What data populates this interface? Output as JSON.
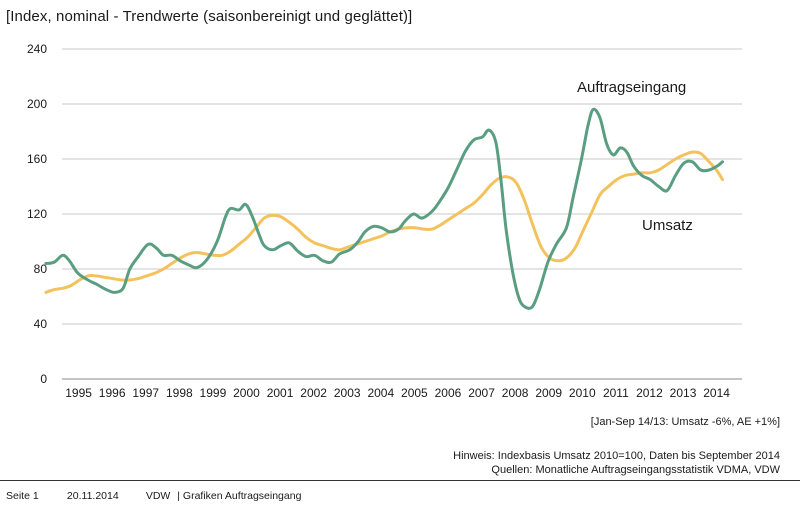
{
  "header": {
    "title": "[Index, nominal - Trendwerte (saisonbereinigt und geglättet)]"
  },
  "notes": {
    "change": "[Jan-Sep 14/13: Umsatz -6%, AE +1%]",
    "hinweis": "Hinweis: Indexbasis Umsatz 2010=100, Daten bis September 2014",
    "quellen": "Quellen: Monatliche Auftragseingangsstatistik VDMA, VDW"
  },
  "footer": {
    "page": "Seite 1",
    "date": "20.11.2014",
    "org": "VDW",
    "section": "| Grafiken Auftragseingang"
  },
  "colors": {
    "auftragseingang": "#5a9e82",
    "umsatz": "#f3c25c",
    "grid": "#c8c8c8"
  },
  "chart_data": {
    "type": "line",
    "title": "[Index, nominal - Trendwerte (saisonbereinigt und geglättet)]",
    "xlabel": "",
    "ylabel": "",
    "ylim": [
      0,
      240
    ],
    "yticks": [
      0,
      40,
      80,
      120,
      160,
      200,
      240
    ],
    "xlim": [
      1994.5,
      2014.75
    ],
    "xticks": [
      "1995",
      "1996",
      "1997",
      "1998",
      "1999",
      "2000",
      "2001",
      "2002",
      "2003",
      "2004",
      "2005",
      "2006",
      "2007",
      "2008",
      "2009",
      "2010",
      "2011",
      "2012",
      "2013",
      "2014"
    ],
    "grid": "horizontal",
    "series": [
      {
        "name": "Auftragseingang",
        "color": "#5a9e82",
        "x": [
          1994.5,
          1994.75,
          1995.0,
          1995.2,
          1995.45,
          1995.75,
          1996.0,
          1996.3,
          1996.55,
          1996.8,
          1997.0,
          1997.25,
          1997.55,
          1997.8,
          1998.0,
          1998.25,
          1998.5,
          1998.75,
          1999.0,
          1999.3,
          1999.6,
          1999.85,
          2000.0,
          2000.25,
          2000.45,
          2000.65,
          2000.85,
          2001.0,
          2001.25,
          2001.5,
          2001.75,
          2002.0,
          2002.25,
          2002.5,
          2002.75,
          2003.0,
          2003.25,
          2003.55,
          2003.8,
          2004.0,
          2004.25,
          2004.5,
          2004.75,
          2005.0,
          2005.2,
          2005.45,
          2005.7,
          2006.0,
          2006.25,
          2006.5,
          2006.75,
          2007.0,
          2007.25,
          2007.5,
          2007.7,
          2007.9,
          2008.05,
          2008.2,
          2008.4,
          2008.6,
          2008.8,
          2009.0,
          2009.2,
          2009.45,
          2009.7,
          2010.0,
          2010.2,
          2010.45,
          2010.65,
          2010.8,
          2011.0,
          2011.2,
          2011.4,
          2011.6,
          2011.8,
          2012.0,
          2012.25,
          2012.5,
          2012.75,
          2013.0,
          2013.25,
          2013.5,
          2013.75,
          2014.0,
          2014.25,
          2014.5,
          2014.65
        ],
        "values": [
          84,
          85,
          90,
          86,
          77,
          72,
          69,
          65,
          63,
          66,
          80,
          89,
          98,
          95,
          90,
          90,
          86,
          83,
          81,
          87,
          100,
          118,
          124,
          123,
          127,
          118,
          105,
          97,
          94,
          97,
          99,
          93,
          89,
          90,
          86,
          85,
          91,
          94,
          100,
          107,
          111,
          110,
          107,
          109,
          115,
          120,
          117,
          122,
          130,
          140,
          153,
          166,
          174,
          176,
          181,
          172,
          145,
          110,
          78,
          58,
          52,
          53,
          65,
          85,
          98,
          110,
          132,
          160,
          185,
          196,
          190,
          171,
          163,
          168,
          165,
          155,
          148,
          145,
          140,
          137,
          148,
          157,
          158,
          152,
          152,
          155,
          158
        ]
      },
      {
        "name": "Umsatz",
        "color": "#f3c25c",
        "x": [
          1994.5,
          1994.75,
          1995.0,
          1995.25,
          1995.5,
          1995.75,
          1996.0,
          1996.25,
          1996.5,
          1996.75,
          1997.0,
          1997.25,
          1997.5,
          1997.75,
          1998.0,
          1998.25,
          1998.5,
          1998.75,
          1999.0,
          1999.25,
          1999.5,
          1999.75,
          2000.0,
          2000.25,
          2000.5,
          2000.75,
          2001.0,
          2001.25,
          2001.5,
          2001.75,
          2002.0,
          2002.25,
          2002.5,
          2002.75,
          2003.0,
          2003.25,
          2003.5,
          2003.75,
          2004.0,
          2004.25,
          2004.5,
          2004.75,
          2005.0,
          2005.25,
          2005.5,
          2005.75,
          2006.0,
          2006.25,
          2006.5,
          2006.75,
          2007.0,
          2007.25,
          2007.5,
          2007.75,
          2008.0,
          2008.25,
          2008.5,
          2008.75,
          2009.0,
          2009.25,
          2009.5,
          2009.75,
          2010.0,
          2010.25,
          2010.5,
          2010.75,
          2011.0,
          2011.25,
          2011.5,
          2011.75,
          2012.0,
          2012.25,
          2012.5,
          2012.75,
          2013.0,
          2013.25,
          2013.5,
          2013.75,
          2014.0,
          2014.25,
          2014.5,
          2014.65
        ],
        "values": [
          63,
          65,
          66,
          68,
          72,
          75,
          75,
          74,
          73,
          72,
          72,
          73,
          75,
          77,
          80,
          84,
          88,
          91,
          92,
          91,
          90,
          90,
          93,
          98,
          103,
          110,
          117,
          119,
          118,
          114,
          109,
          103,
          99,
          97,
          95,
          94,
          96,
          98,
          100,
          102,
          104,
          107,
          109,
          110,
          110,
          109,
          109,
          112,
          116,
          120,
          124,
          128,
          134,
          141,
          146,
          147,
          143,
          130,
          112,
          96,
          88,
          86,
          88,
          95,
          108,
          121,
          134,
          140,
          145,
          148,
          149,
          150,
          150,
          152,
          156,
          160,
          163,
          165,
          164,
          158,
          151,
          145
        ]
      }
    ],
    "annotations": [
      {
        "text": "Auftragseingang",
        "series": "Auftragseingang"
      },
      {
        "text": "Umsatz",
        "series": "Umsatz"
      }
    ]
  }
}
